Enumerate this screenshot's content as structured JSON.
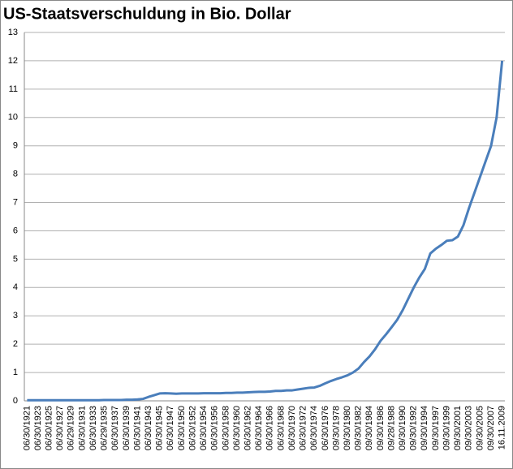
{
  "chart_data": {
    "type": "line",
    "title": "US-Staatsverschuldung in Bio. Dollar",
    "categories": [
      "06/30/1921",
      null,
      "06/30/1923",
      null,
      "06/30/1925",
      null,
      "06/30/1927",
      null,
      "06/29/1929",
      null,
      "06/30/1931",
      null,
      "06/30/1933",
      null,
      "06/29/1935",
      null,
      "06/30/1937",
      null,
      "06/30/1939",
      null,
      "06/30/1941",
      null,
      "06/30/1943",
      null,
      "06/30/1945",
      null,
      "06/30/1947",
      null,
      "06/30/1950",
      null,
      "06/30/1952",
      null,
      "06/30/1954",
      null,
      "06/30/1956",
      null,
      "06/30/1958",
      null,
      "06/30/1960",
      null,
      "06/30/1962",
      null,
      "06/30/1964",
      null,
      "06/30/1966",
      null,
      "06/30/1968",
      null,
      "06/30/1970",
      null,
      "06/30/1972",
      null,
      "06/30/1974",
      null,
      "06/30/1976",
      null,
      "09/30/1978",
      null,
      "09/30/1980",
      null,
      "09/30/1982",
      null,
      "09/30/1984",
      null,
      "09/30/1986",
      null,
      "09/28/1988",
      null,
      "09/30/1990",
      null,
      "09/30/1992",
      null,
      "09/30/1994",
      null,
      "09/30/1997",
      null,
      "09/30/1999",
      null,
      "09/30/2001",
      null,
      "09/30/2003",
      null,
      "09/30/2005",
      null,
      "09/30/2007",
      null,
      "16.11.2009"
    ],
    "values": [
      0.02,
      0.02,
      0.02,
      0.02,
      0.02,
      0.02,
      0.02,
      0.02,
      0.02,
      0.02,
      0.02,
      0.02,
      0.02,
      0.02,
      0.03,
      0.03,
      0.03,
      0.03,
      0.04,
      0.04,
      0.05,
      0.07,
      0.14,
      0.2,
      0.26,
      0.27,
      0.26,
      0.25,
      0.26,
      0.26,
      0.26,
      0.26,
      0.27,
      0.27,
      0.27,
      0.27,
      0.28,
      0.28,
      0.29,
      0.29,
      0.3,
      0.31,
      0.32,
      0.32,
      0.33,
      0.35,
      0.35,
      0.37,
      0.37,
      0.4,
      0.43,
      0.46,
      0.47,
      0.53,
      0.62,
      0.7,
      0.77,
      0.83,
      0.9,
      1.0,
      1.14,
      1.37,
      1.57,
      1.82,
      2.12,
      2.35,
      2.6,
      2.86,
      3.2,
      3.6,
      4.0,
      4.35,
      4.65,
      5.2,
      5.37,
      5.5,
      5.65,
      5.67,
      5.8,
      6.2,
      6.8,
      7.35,
      7.9,
      8.45,
      9.0,
      10.0,
      12.0
    ],
    "color": "#4a7ebb",
    "ylim": [
      0,
      13
    ],
    "yticks": [
      0,
      1,
      2,
      3,
      4,
      5,
      6,
      7,
      8,
      9,
      10,
      11,
      12,
      13
    ],
    "grid": true
  }
}
